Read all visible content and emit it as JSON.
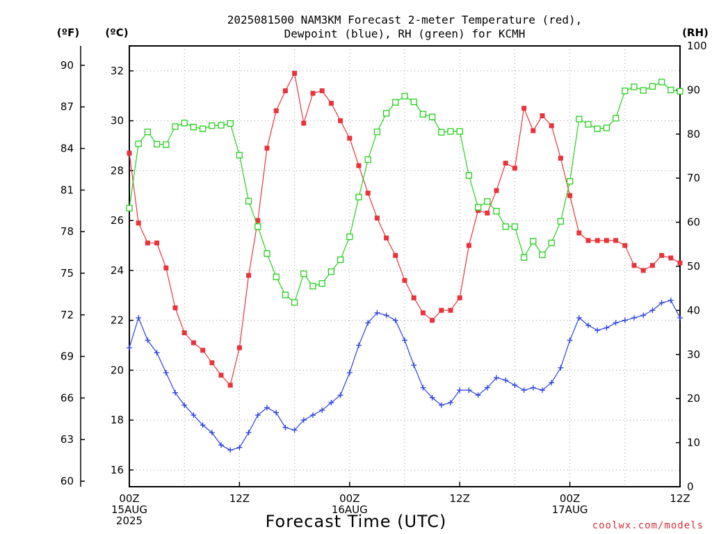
{
  "title_line1": "2025081500 NAM3KM Forecast 2-meter Temperature (red),",
  "title_line2": "Dewpoint (blue), RH (green) for KCMH",
  "unit_f": "(ºF)",
  "unit_c": "(ºC)",
  "unit_rh": "(RH)",
  "xlabel": "Forecast Time (UTC)",
  "credit": "coolwx.com/models",
  "chart_data": {
    "type": "line",
    "grid": true,
    "xlim": [
      0,
      60
    ],
    "ylim_c": [
      15.33,
      33.0
    ],
    "ylim_f": [
      59.6,
      91.4
    ],
    "ylim_rh": [
      0,
      100
    ],
    "x_ticks": [
      {
        "x": 0,
        "line1": "00Z",
        "line2": "15AUG",
        "line3": "2025"
      },
      {
        "x": 12,
        "line1": "12Z",
        "line2": "",
        "line3": ""
      },
      {
        "x": 24,
        "line1": "00Z",
        "line2": "16AUG",
        "line3": ""
      },
      {
        "x": 36,
        "line1": "12Z",
        "line2": "",
        "line3": ""
      },
      {
        "x": 48,
        "line1": "00Z",
        "line2": "17AUG",
        "line3": ""
      },
      {
        "x": 60,
        "line1": "12Z",
        "line2": "",
        "line3": ""
      }
    ],
    "c_ticks": [
      "16",
      "18",
      "20",
      "22",
      "24",
      "26",
      "28",
      "30",
      "32"
    ],
    "f_ticks": [
      "60",
      "63",
      "66",
      "69",
      "72",
      "75",
      "78",
      "81",
      "84",
      "87",
      "90"
    ],
    "rh_ticks": [
      "0",
      "10",
      "20",
      "30",
      "40",
      "50",
      "60",
      "70",
      "80",
      "90",
      "100"
    ],
    "x": [
      0,
      1,
      2,
      3,
      4,
      5,
      6,
      7,
      8,
      9,
      10,
      11,
      12,
      13,
      14,
      15,
      16,
      17,
      18,
      19,
      20,
      21,
      22,
      23,
      24,
      25,
      26,
      27,
      28,
      29,
      30,
      31,
      32,
      33,
      34,
      35,
      36,
      37,
      38,
      39,
      40,
      41,
      42,
      43,
      44,
      45,
      46,
      47,
      48,
      49,
      50,
      51,
      52,
      53,
      54,
      55,
      56,
      57,
      58,
      59,
      60
    ],
    "series": [
      {
        "name": "Temperature (red)",
        "color": "#e8333a",
        "marker": "filled-square",
        "axis": "c",
        "values": [
          28.7,
          25.9,
          25.1,
          25.1,
          24.1,
          22.5,
          21.5,
          21.1,
          20.8,
          20.3,
          19.8,
          19.4,
          20.9,
          23.8,
          26.0,
          28.9,
          30.4,
          31.2,
          31.9,
          29.9,
          31.1,
          31.2,
          30.7,
          30.0,
          29.3,
          28.2,
          27.1,
          26.1,
          25.3,
          24.6,
          23.6,
          22.9,
          22.3,
          22.0,
          22.4,
          22.4,
          22.9,
          25.0,
          26.4,
          26.3,
          27.2,
          28.3,
          28.1,
          30.5,
          29.6,
          30.2,
          29.8,
          28.5,
          27.0,
          25.5,
          25.2,
          25.2,
          25.2,
          25.2,
          25.0,
          24.2,
          24.0,
          24.2,
          24.6,
          24.5,
          24.3
        ]
      },
      {
        "name": "Dewpoint (blue)",
        "color": "#2a3fe0",
        "marker": "plus",
        "axis": "c",
        "values": [
          20.9,
          22.1,
          21.2,
          20.7,
          19.9,
          19.1,
          18.6,
          18.2,
          17.8,
          17.5,
          17.0,
          16.8,
          16.9,
          17.5,
          18.2,
          18.5,
          18.3,
          17.7,
          17.6,
          18.0,
          18.2,
          18.4,
          18.7,
          19.0,
          19.9,
          21.0,
          21.9,
          22.3,
          22.2,
          22.0,
          21.2,
          20.2,
          19.3,
          18.9,
          18.6,
          18.7,
          19.2,
          19.2,
          19.0,
          19.3,
          19.7,
          19.6,
          19.4,
          19.2,
          19.3,
          19.2,
          19.5,
          20.1,
          21.2,
          22.1,
          21.8,
          21.6,
          21.7,
          21.9,
          22.0,
          22.1,
          22.2,
          22.4,
          22.7,
          22.8,
          22.1
        ]
      },
      {
        "name": "RH (green)",
        "color": "#22d01a",
        "marker": "open-square",
        "axis": "rh",
        "values": [
          63.2,
          77.8,
          80.5,
          77.7,
          77.6,
          81.7,
          82.5,
          81.6,
          81.2,
          81.9,
          82.0,
          82.4,
          75.2,
          64.8,
          59.0,
          52.9,
          47.6,
          43.5,
          41.8,
          48.3,
          45.5,
          46.1,
          48.8,
          51.5,
          56.7,
          65.7,
          74.2,
          80.5,
          84.7,
          87.2,
          88.6,
          87.3,
          84.5,
          83.9,
          80.4,
          80.6,
          80.6,
          70.6,
          63.4,
          64.7,
          62.5,
          59.0,
          59.0,
          52.0,
          55.7,
          52.6,
          55.3,
          60.2,
          69.3,
          83.4,
          82.2,
          81.2,
          81.4,
          83.6,
          89.8,
          90.7,
          89.9,
          90.8,
          91.8,
          90.0,
          89.7
        ]
      }
    ]
  }
}
